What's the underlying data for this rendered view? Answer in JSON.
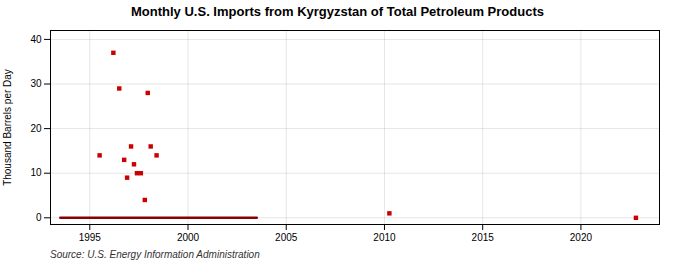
{
  "chart_data": {
    "type": "scatter",
    "title": "Monthly U.S. Imports from Kyrgyzstan of Total Petroleum Products",
    "ylabel": "Thousand Barrels per Day",
    "annotation": "Source: U.S. Energy Information Administration",
    "xlim": [
      1993.0,
      2024.0
    ],
    "ylim": [
      -1.5,
      42
    ],
    "xticks": [
      1995,
      2000,
      2005,
      2010,
      2015,
      2020
    ],
    "yticks": [
      0,
      10,
      20,
      30,
      40
    ],
    "grid": true,
    "series": [
      {
        "type": "line",
        "color": "#8b0000",
        "line_style": "solid",
        "x": [
          1993.5,
          2003.5
        ],
        "values": [
          0,
          0
        ]
      },
      {
        "type": "scatter",
        "color": "#cc0000",
        "marker": "square",
        "x": [
          1995.5,
          1996.2,
          1996.5,
          1996.75,
          1996.9,
          1997.1,
          1997.25,
          1997.4,
          1997.6,
          1997.8,
          1997.95,
          1998.1,
          1998.4,
          2010.25,
          2022.8
        ],
        "values": [
          14,
          37,
          29,
          13,
          9,
          16,
          12,
          10,
          10,
          4,
          28,
          16,
          14,
          1,
          0
        ]
      }
    ]
  }
}
